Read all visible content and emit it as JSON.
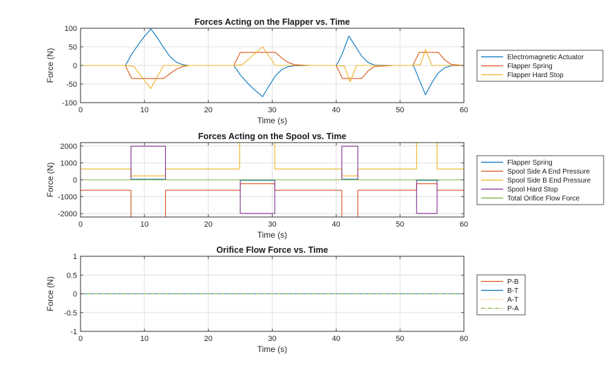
{
  "chart_data": [
    {
      "type": "line",
      "title": "Forces Acting on the Flapper vs. Time",
      "xlabel": "Time (s)",
      "ylabel": "Force (N)",
      "xlim": [
        0,
        60
      ],
      "ylim": [
        -100,
        100
      ],
      "xticks": [
        0,
        10,
        20,
        30,
        40,
        50,
        60
      ],
      "yticks": [
        -100,
        -50,
        0,
        50,
        100
      ],
      "grid": true,
      "legend_position": "right",
      "series": [
        {
          "name": "Electromagnetic Actuator",
          "color": "#0072BD",
          "style": "solid",
          "x": [
            0,
            7,
            7.3,
            8,
            9,
            10,
            11,
            12,
            13,
            14,
            15,
            16,
            17,
            20,
            24,
            24.3,
            25,
            26,
            27,
            28.5,
            29.5,
            30.5,
            31.5,
            32.5,
            33.5,
            36,
            40,
            40.3,
            41,
            42,
            43,
            44,
            45,
            46,
            49,
            52,
            52.3,
            53,
            54,
            55,
            56,
            57,
            58,
            60
          ],
          "y": [
            0,
            0,
            8,
            30,
            55,
            78,
            98,
            75,
            48,
            24,
            9,
            2,
            0,
            0,
            0,
            -8,
            -25,
            -45,
            -62,
            -84,
            -55,
            -28,
            -11,
            -3,
            -1,
            0,
            0,
            8,
            33,
            79,
            52,
            25,
            8,
            1,
            0,
            0,
            -8,
            -38,
            -79,
            -46,
            -20,
            -6,
            -1,
            0
          ]
        },
        {
          "name": "Flapper Spring",
          "color": "#D95319",
          "style": "solid",
          "x": [
            0,
            7,
            8,
            13,
            14,
            15,
            16,
            17,
            20,
            24,
            25,
            30.5,
            31.5,
            32.5,
            33.5,
            36,
            40,
            41,
            44,
            45,
            46,
            49,
            52,
            53,
            56,
            57,
            58,
            60
          ],
          "y": [
            0,
            0,
            -35,
            -35,
            -22,
            -10,
            -3,
            0,
            0,
            0,
            35,
            35,
            20,
            8,
            2,
            0,
            0,
            -35,
            -35,
            -15,
            -3,
            0,
            0,
            35,
            35,
            15,
            3,
            0
          ]
        },
        {
          "name": "Flapper Hard Stop",
          "color": "#EDB120",
          "style": "solid",
          "x": [
            0,
            7,
            8.3,
            11,
            13,
            20,
            24,
            25.3,
            28.5,
            30.5,
            40,
            41.3,
            42.2,
            43.2,
            52,
            53.2,
            54,
            55,
            60
          ],
          "y": [
            0,
            0,
            -2,
            -62,
            0,
            0,
            0,
            2,
            50,
            0,
            0,
            -2,
            -44,
            0,
            0,
            2,
            43,
            0,
            0
          ]
        }
      ]
    },
    {
      "type": "line",
      "title": "Forces Acting on the Spool vs. Time",
      "xlabel": "Time (s)",
      "ylabel": "Force (N)",
      "xlim": [
        0,
        60
      ],
      "ylim": [
        -2200,
        2200
      ],
      "xticks": [
        0,
        10,
        20,
        30,
        40,
        50,
        60
      ],
      "yticks": [
        -2000,
        -1000,
        0,
        1000,
        2000
      ],
      "grid": true,
      "legend_position": "right",
      "series": [
        {
          "name": "Flapper Spring",
          "color": "#0072BD",
          "style": "solid",
          "x": [
            0,
            8,
            8,
            13.3,
            13.3,
            25,
            25,
            30.4,
            30.4,
            41,
            41,
            43.4,
            43.4,
            52.6,
            52.6,
            56,
            56,
            60
          ],
          "y": [
            0,
            0,
            35,
            35,
            0,
            0,
            -35,
            -35,
            0,
            0,
            35,
            35,
            0,
            0,
            -35,
            -35,
            0,
            0
          ]
        },
        {
          "name": "Spool Side A End Pressure",
          "color": "#D95319",
          "style": "solid",
          "x": [
            0,
            7.9,
            7.9,
            13.3,
            13.3,
            25,
            25,
            30.4,
            30.4,
            40.9,
            40.9,
            43.4,
            43.4,
            52.6,
            52.6,
            55.8,
            55.8,
            60
          ],
          "y": [
            -620,
            -620,
            -2200,
            -2200,
            -620,
            -620,
            -230,
            -230,
            -620,
            -620,
            -2200,
            -2200,
            -620,
            -620,
            -230,
            -230,
            -620,
            -620
          ]
        },
        {
          "name": "Spool Side B End Pressure",
          "color": "#EDB120",
          "style": "solid",
          "x": [
            0,
            7.9,
            7.9,
            13.3,
            13.3,
            24.9,
            24.9,
            30.4,
            30.4,
            40.9,
            40.9,
            43.4,
            43.4,
            52.6,
            52.6,
            55.8,
            55.8,
            60
          ],
          "y": [
            640,
            640,
            230,
            230,
            640,
            640,
            2200,
            2200,
            640,
            640,
            230,
            230,
            640,
            640,
            2200,
            2200,
            640,
            640
          ]
        },
        {
          "name": "Spool Hard Stop",
          "color": "#7E2F8E",
          "style": "solid",
          "x": [
            0,
            7.9,
            7.9,
            13.3,
            13.3,
            25,
            25,
            30.4,
            30.4,
            40.9,
            40.9,
            43.4,
            43.4,
            52.6,
            52.6,
            55.8,
            55.8,
            60
          ],
          "y": [
            0,
            0,
            1990,
            1990,
            0,
            0,
            -1990,
            -1990,
            0,
            0,
            1990,
            1990,
            0,
            0,
            -1990,
            -1990,
            0,
            0
          ]
        },
        {
          "name": "Total Orifice Flow Force",
          "color": "#77AC30",
          "style": "solid",
          "x": [
            0,
            60
          ],
          "y": [
            0,
            0
          ]
        }
      ]
    },
    {
      "type": "line",
      "title": "Orifice Flow Force vs. Time",
      "xlabel": "Time (s)",
      "ylabel": "Force (N)",
      "xlim": [
        0,
        60
      ],
      "ylim": [
        -1,
        1
      ],
      "xticks": [
        0,
        10,
        20,
        30,
        40,
        50,
        60
      ],
      "yticks": [
        -1,
        -0.5,
        0,
        0.5,
        1
      ],
      "grid": true,
      "legend_position": "right",
      "series": [
        {
          "name": "P-B",
          "color": "#D95319",
          "style": "solid",
          "x": [
            0,
            60
          ],
          "y": [
            0,
            0
          ]
        },
        {
          "name": "B-T",
          "color": "#0072BD",
          "style": "solid",
          "x": [
            0,
            60
          ],
          "y": [
            0,
            0
          ]
        },
        {
          "name": "A-T",
          "color": "#EDB120",
          "style": "dotted",
          "x": [
            0,
            60
          ],
          "y": [
            0,
            0
          ]
        },
        {
          "name": "P-A",
          "color": "#77AC30",
          "style": "dashdot",
          "x": [
            0,
            60
          ],
          "y": [
            0,
            0
          ]
        }
      ]
    }
  ]
}
